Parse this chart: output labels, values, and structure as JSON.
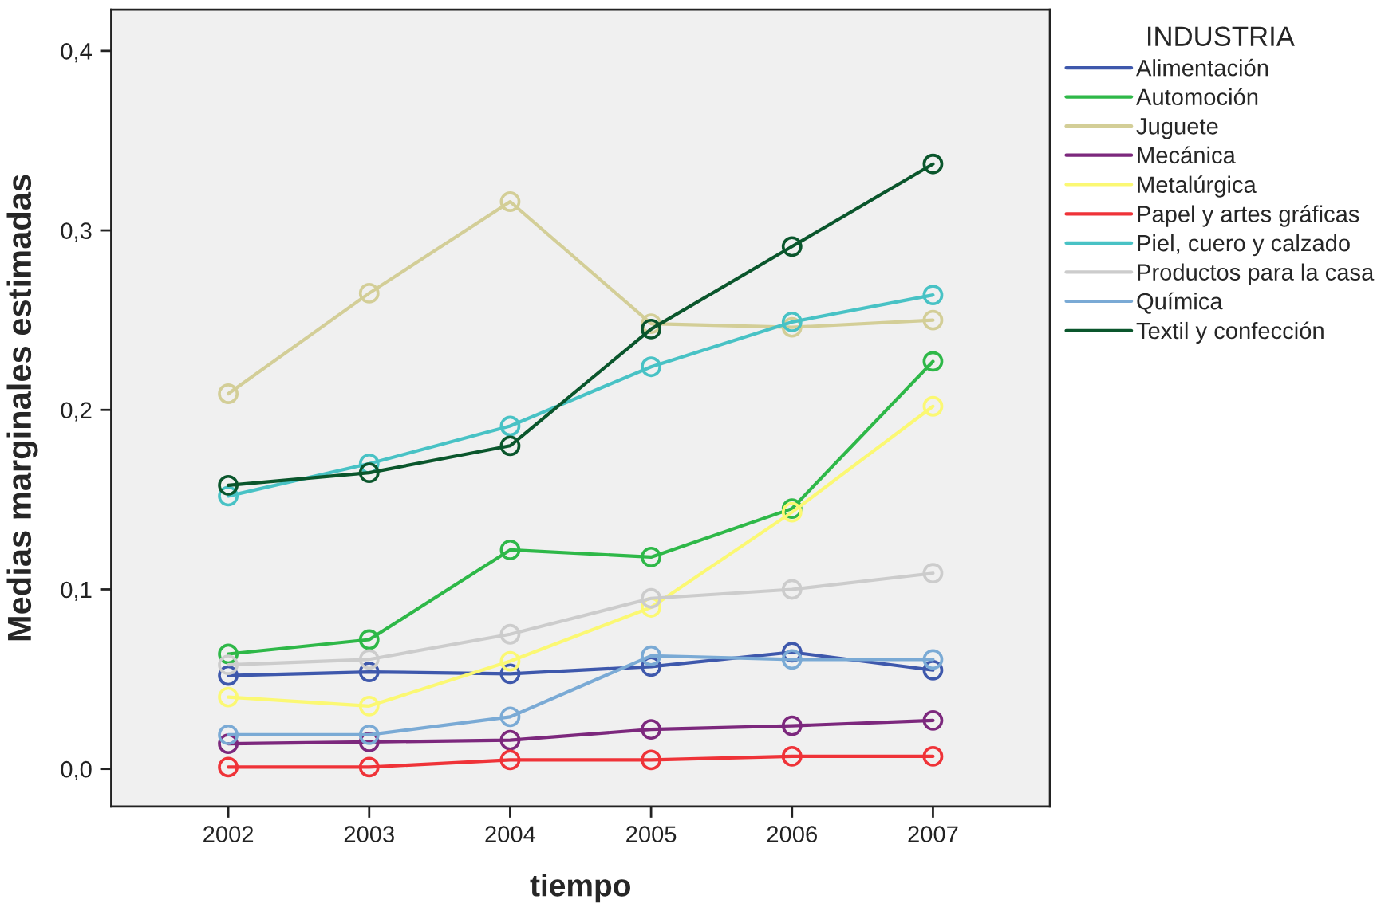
{
  "chart_data": {
    "type": "line",
    "xlabel": "tiempo",
    "ylabel": "Medias marginales estimadas",
    "legend_title": "INDUSTRIA",
    "x": [
      2002,
      2003,
      2004,
      2005,
      2006,
      2007
    ],
    "series": [
      {
        "name": "Alimentación",
        "color": "#3e58ac",
        "values": [
          0.052,
          0.054,
          0.053,
          0.057,
          0.065,
          0.055
        ]
      },
      {
        "name": "Automoción",
        "color": "#2eb848",
        "values": [
          0.064,
          0.072,
          0.122,
          0.118,
          0.145,
          0.227
        ]
      },
      {
        "name": "Juguete",
        "color": "#d3ce97",
        "values": [
          0.209,
          0.265,
          0.316,
          0.248,
          0.246,
          0.25
        ]
      },
      {
        "name": "Mecánica",
        "color": "#7c287d",
        "values": [
          0.014,
          0.015,
          0.016,
          0.022,
          0.024,
          0.027
        ]
      },
      {
        "name": "Metalúrgica",
        "color": "#fbf873",
        "values": [
          0.04,
          0.035,
          0.06,
          0.09,
          0.143,
          0.202
        ]
      },
      {
        "name": "Papel y artes gráficas",
        "color": "#ef3338",
        "values": [
          0.001,
          0.001,
          0.005,
          0.005,
          0.007,
          0.007
        ]
      },
      {
        "name": "Piel, cuero y calzado",
        "color": "#48c2c5",
        "values": [
          0.152,
          0.17,
          0.191,
          0.224,
          0.249,
          0.264
        ]
      },
      {
        "name": "Productos para la casa",
        "color": "#cccccc",
        "values": [
          0.058,
          0.061,
          0.075,
          0.095,
          0.1,
          0.109
        ]
      },
      {
        "name": "Química",
        "color": "#7aaad5",
        "values": [
          0.019,
          0.019,
          0.029,
          0.063,
          0.061,
          0.061
        ]
      },
      {
        "name": "Textil y confección",
        "color": "#0a562c",
        "values": [
          0.158,
          0.165,
          0.18,
          0.245,
          0.291,
          0.337
        ]
      }
    ],
    "xlim": [
      2001.17,
      2007.83
    ],
    "xticks": [
      2002,
      2003,
      2004,
      2005,
      2006,
      2007
    ],
    "ylim": [
      -0.021,
      0.423
    ],
    "yticks": [
      {
        "value": 0.0,
        "label": "0,0"
      },
      {
        "value": 0.1,
        "label": "0,1"
      },
      {
        "value": 0.2,
        "label": "0,2"
      },
      {
        "value": 0.3,
        "label": "0,3"
      },
      {
        "value": 0.4,
        "label": "0,4"
      }
    ],
    "marker": "circle",
    "line_style": "solid",
    "grid": false,
    "legend": "right"
  }
}
